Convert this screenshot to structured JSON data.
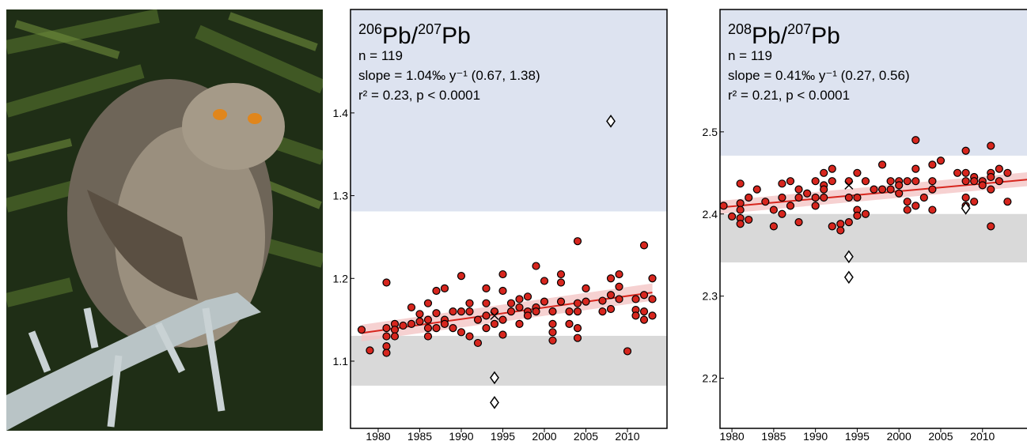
{
  "chart_data": [
    {
      "type": "scatter",
      "title": [
        {
          "text": "206",
          "sup": true
        },
        {
          "text": "Pb/"
        },
        {
          "text": "207",
          "sup": true
        },
        {
          "text": "Pb"
        }
      ],
      "annotations": [
        "n = 119",
        "slope = 1.04‰ y⁻¹ (0.67, 1.38)",
        "r² = 0.23, p < 0.0001"
      ],
      "xlim": [
        1976.67,
        2014.76
      ],
      "ylim": [
        1.0188,
        1.525
      ],
      "xticks": [
        1980,
        1985,
        1990,
        1995,
        2000,
        2005,
        2010
      ],
      "yticks": [
        1.1,
        1.2,
        1.3,
        1.4
      ],
      "bands": [
        {
          "ylim": [
            1.281,
            1.525
          ],
          "color": "#dde3f0"
        },
        {
          "ylim": [
            1.0704,
            1.1306
          ],
          "color": "#d9d9d9"
        }
      ],
      "fit": {
        "color": "#d7261e",
        "band_color": "#f4c6c6",
        "x": [
          1978,
          2013
        ],
        "values": [
          1.134,
          1.183
        ],
        "lower": [
          1.124,
          1.173
        ],
        "upper": [
          1.144,
          1.194
        ]
      },
      "series": [
        {
          "marker": "circle",
          "color": "#d7261e",
          "x": [
            1978,
            1979,
            1981,
            1981,
            1981,
            1981,
            1981,
            1982,
            1982,
            1982,
            1983,
            1984,
            1984,
            1985,
            1985,
            1986,
            1986,
            1986,
            1986,
            1987,
            1987,
            1987,
            1988,
            1988,
            1988,
            1989,
            1989,
            1990,
            1990,
            1990,
            1991,
            1991,
            1991,
            1992,
            1992,
            1993,
            1993,
            1993,
            1993,
            1994,
            1994,
            1995,
            1995,
            1995,
            1995,
            1996,
            1996,
            1997,
            1997,
            1997,
            1998,
            1998,
            1998,
            1999,
            1999,
            1999,
            2000,
            2000,
            2001,
            2001,
            2001,
            2001,
            2002,
            2002,
            2002,
            2003,
            2003,
            2004,
            2004,
            2004,
            2004,
            2004,
            2005,
            2005,
            2007,
            2007,
            2008,
            2008,
            2008,
            2009,
            2009,
            2009,
            2010,
            2011,
            2011,
            2011,
            2012,
            2012,
            2012,
            2012,
            2013,
            2013,
            2013
          ],
          "values": [
            1.138,
            1.113,
            1.195,
            1.14,
            1.13,
            1.118,
            1.11,
            1.145,
            1.138,
            1.13,
            1.143,
            1.165,
            1.145,
            1.157,
            1.148,
            1.17,
            1.15,
            1.14,
            1.13,
            1.185,
            1.158,
            1.14,
            1.188,
            1.15,
            1.145,
            1.16,
            1.14,
            1.203,
            1.16,
            1.135,
            1.17,
            1.16,
            1.13,
            1.15,
            1.122,
            1.188,
            1.17,
            1.155,
            1.14,
            1.16,
            1.145,
            1.205,
            1.185,
            1.15,
            1.132,
            1.17,
            1.16,
            1.175,
            1.165,
            1.145,
            1.178,
            1.16,
            1.155,
            1.215,
            1.165,
            1.16,
            1.197,
            1.172,
            1.16,
            1.145,
            1.135,
            1.125,
            1.205,
            1.195,
            1.172,
            1.16,
            1.145,
            1.245,
            1.17,
            1.16,
            1.14,
            1.128,
            1.188,
            1.172,
            1.173,
            1.16,
            1.2,
            1.18,
            1.163,
            1.205,
            1.19,
            1.175,
            1.112,
            1.175,
            1.162,
            1.155,
            1.24,
            1.18,
            1.16,
            1.15,
            1.175,
            1.155,
            1.2
          ]
        },
        {
          "marker": "diamond",
          "color": "#000000",
          "x": [
            2008,
            1994,
            1994
          ],
          "values": [
            1.39,
            1.08,
            1.05
          ]
        },
        {
          "marker": "x",
          "color": "#000000",
          "x": [
            1994
          ],
          "values": [
            1.155
          ]
        }
      ]
    },
    {
      "type": "scatter",
      "title": [
        {
          "text": "208",
          "sup": true
        },
        {
          "text": "Pb/"
        },
        {
          "text": "207",
          "sup": true
        },
        {
          "text": "Pb"
        }
      ],
      "annotations": [
        "n = 119",
        "slope = 0.41‰ y⁻¹ (0.27, 0.56)",
        "r² = 0.21, p < 0.0001"
      ],
      "xlim": [
        1978.57,
        2015.52
      ],
      "ylim": [
        2.139,
        2.649
      ],
      "xticks": [
        1980,
        1985,
        1990,
        1995,
        2000,
        2005,
        2010
      ],
      "yticks": [
        2.2,
        2.3,
        2.4,
        2.5
      ],
      "bands": [
        {
          "ylim": [
            2.471,
            2.649
          ],
          "color": "#dde3f0"
        },
        {
          "ylim": [
            2.341,
            2.4
          ],
          "color": "#d9d9d9"
        }
      ],
      "fit": {
        "color": "#d7261e",
        "band_color": "#f4c6c6",
        "x": [
          1978.57,
          2015.52
        ],
        "values": [
          2.408,
          2.442
        ],
        "lower": [
          2.4,
          2.434
        ],
        "upper": [
          2.416,
          2.451
        ]
      },
      "series": [
        {
          "marker": "circle",
          "color": "#d7261e",
          "x": [
            1979,
            1980,
            1981,
            1981,
            1981,
            1981,
            1981,
            1982,
            1982,
            1983,
            1984,
            1985,
            1985,
            1986,
            1986,
            1986,
            1987,
            1987,
            1988,
            1988,
            1988,
            1989,
            1990,
            1990,
            1990,
            1991,
            1991,
            1991,
            1991,
            1992,
            1992,
            1992,
            1993,
            1993,
            1994,
            1994,
            1994,
            1995,
            1995,
            1995,
            1995,
            1996,
            1996,
            1997,
            1998,
            1998,
            1999,
            1999,
            2000,
            2000,
            2000,
            2001,
            2001,
            2001,
            2002,
            2002,
            2002,
            2002,
            2003,
            2004,
            2004,
            2004,
            2004,
            2005,
            2007,
            2008,
            2008,
            2008,
            2008,
            2008,
            2009,
            2009,
            2009,
            2010,
            2010,
            2011,
            2011,
            2011,
            2011,
            2011,
            2012,
            2012,
            2013,
            2013
          ],
          "values": [
            2.41,
            2.397,
            2.437,
            2.413,
            2.405,
            2.395,
            2.388,
            2.42,
            2.393,
            2.43,
            2.415,
            2.405,
            2.385,
            2.437,
            2.42,
            2.4,
            2.44,
            2.41,
            2.43,
            2.42,
            2.39,
            2.425,
            2.44,
            2.42,
            2.41,
            2.45,
            2.435,
            2.43,
            2.42,
            2.455,
            2.44,
            2.385,
            2.388,
            2.38,
            2.44,
            2.42,
            2.39,
            2.45,
            2.42,
            2.405,
            2.398,
            2.44,
            2.4,
            2.43,
            2.46,
            2.43,
            2.44,
            2.43,
            2.44,
            2.435,
            2.425,
            2.44,
            2.415,
            2.405,
            2.49,
            2.455,
            2.44,
            2.41,
            2.42,
            2.46,
            2.44,
            2.43,
            2.405,
            2.465,
            2.45,
            2.477,
            2.45,
            2.44,
            2.42,
            2.41,
            2.445,
            2.44,
            2.415,
            2.44,
            2.435,
            2.483,
            2.45,
            2.445,
            2.43,
            2.385,
            2.455,
            2.44,
            2.45,
            2.415
          ]
        },
        {
          "marker": "diamond",
          "color": "#000000",
          "x": [
            1994,
            1994,
            2008
          ],
          "values": [
            2.348,
            2.323,
            2.407
          ]
        },
        {
          "marker": "x",
          "color": "#000000",
          "x": [
            1994
          ],
          "values": [
            2.435
          ]
        }
      ]
    }
  ]
}
